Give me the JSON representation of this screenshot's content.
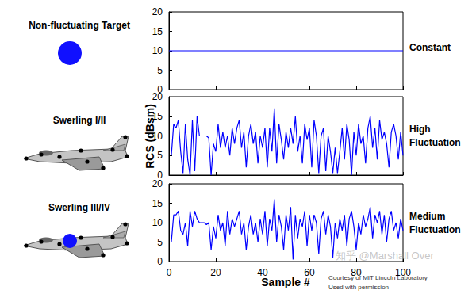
{
  "chart_data": [
    {
      "type": "line",
      "title": "Non-fluctuating Target",
      "annotations": [
        "Constant"
      ],
      "color": "#0000ff",
      "tick_labels": "y",
      "x": [
        0,
        100
      ],
      "values": [
        10,
        10
      ],
      "xlim": [
        0,
        100
      ],
      "xticks": [
        0,
        20,
        40,
        60,
        80,
        100
      ],
      "ylim": [
        0,
        20
      ],
      "yticks": [
        0,
        5,
        10,
        15,
        20
      ]
    },
    {
      "type": "line",
      "title": "Swerling I/II",
      "annotations": [
        "High",
        "Fluctuation"
      ],
      "ylabel": "RCS (dBsm)",
      "color": "#0000ff",
      "tick_labels": "y",
      "x": [
        1,
        2,
        3,
        4,
        5,
        6,
        7,
        8,
        9,
        10,
        11,
        12,
        13,
        14,
        15,
        16,
        17,
        18,
        19,
        20,
        21,
        22,
        23,
        24,
        25,
        26,
        27,
        28,
        29,
        30,
        31,
        32,
        33,
        34,
        35,
        36,
        37,
        38,
        39,
        40,
        41,
        42,
        43,
        44,
        45,
        46,
        47,
        48,
        49,
        50,
        51,
        52,
        53,
        54,
        55,
        56,
        57,
        58,
        59,
        60,
        61,
        62,
        63,
        64,
        65,
        66,
        67,
        68,
        69,
        70,
        71,
        72,
        73,
        74,
        75,
        76,
        77,
        78,
        79,
        80,
        81,
        82,
        83,
        84,
        85,
        86,
        87,
        88,
        89,
        90,
        91,
        92,
        93,
        94,
        95,
        96,
        97,
        98,
        99,
        100
      ],
      "values": [
        5,
        13,
        12,
        14,
        6,
        0.5,
        13,
        4,
        0,
        14,
        1,
        15,
        10,
        10,
        10,
        10,
        9.5,
        0,
        8,
        6,
        13,
        7,
        11,
        7,
        10,
        5,
        12,
        8,
        12,
        14,
        7,
        11,
        2,
        10,
        13,
        8,
        11,
        3,
        10,
        7,
        12,
        2,
        12,
        6,
        17,
        3,
        13,
        9,
        4,
        11,
        7,
        12,
        8,
        15,
        6,
        10,
        3,
        13,
        9,
        12,
        2,
        14,
        10,
        0.5,
        10,
        12,
        1,
        10,
        6,
        0.5,
        7,
        0.5,
        6,
        12,
        4,
        13,
        9,
        0,
        11,
        5,
        13,
        8,
        10,
        3,
        12,
        15,
        7,
        12,
        4,
        14,
        9,
        11,
        8,
        2,
        11,
        13,
        10,
        4,
        11,
        5
      ],
      "xlim": [
        0,
        100
      ],
      "xticks": [
        0,
        20,
        40,
        60,
        80,
        100
      ],
      "ylim": [
        0,
        20
      ],
      "yticks": [
        0,
        5,
        10,
        15,
        20
      ]
    },
    {
      "type": "line",
      "title": "Swerling III/IV",
      "annotations": [
        "Medium",
        "Fluctuation"
      ],
      "xlabel": "Sample #",
      "color": "#0000ff",
      "x": [
        1,
        2,
        3,
        4,
        5,
        6,
        7,
        8,
        9,
        10,
        11,
        12,
        13,
        14,
        15,
        16,
        17,
        18,
        19,
        20,
        21,
        22,
        23,
        24,
        25,
        26,
        27,
        28,
        29,
        30,
        31,
        32,
        33,
        34,
        35,
        36,
        37,
        38,
        39,
        40,
        41,
        42,
        43,
        44,
        45,
        46,
        47,
        48,
        49,
        50,
        51,
        52,
        53,
        54,
        55,
        56,
        57,
        58,
        59,
        60,
        61,
        62,
        63,
        64,
        65,
        66,
        67,
        68,
        69,
        70,
        71,
        72,
        73,
        74,
        75,
        76,
        77,
        78,
        79,
        80,
        81,
        82,
        83,
        84,
        85,
        86,
        87,
        88,
        89,
        90,
        91,
        92,
        93,
        94,
        95,
        96,
        97,
        98,
        99,
        100
      ],
      "values": [
        5,
        12,
        12,
        13,
        8,
        7,
        10,
        4,
        13,
        9,
        13,
        11,
        10,
        10,
        10,
        9.5,
        10,
        3,
        9,
        6,
        12,
        8,
        10,
        4,
        13,
        7,
        11,
        9,
        11,
        13,
        7,
        10,
        3,
        9,
        12,
        7,
        10,
        5,
        11,
        7,
        13,
        4,
        11,
        8,
        16,
        5,
        12,
        9,
        3,
        12,
        8,
        14,
        0.5,
        12,
        6,
        11,
        9,
        13,
        4,
        12,
        8,
        12,
        10,
        2,
        11,
        13,
        7,
        12,
        9,
        1,
        10,
        6,
        11,
        8,
        12,
        4,
        11,
        13,
        9,
        3,
        10,
        7,
        12,
        9,
        11,
        14,
        6,
        12,
        10,
        13,
        7,
        12,
        5,
        11,
        13,
        8,
        10,
        6,
        11,
        8
      ],
      "xlim": [
        0,
        100
      ],
      "xticks": [
        0,
        20,
        40,
        60,
        80,
        100
      ],
      "ylim": [
        0,
        20
      ],
      "yticks": [
        0,
        5,
        10,
        15,
        20
      ]
    }
  ],
  "credits": [
    "Courtesy of MIT Lincoln Laboratory",
    "Used with permission"
  ],
  "watermark": "知乎 @Marshall Over"
}
